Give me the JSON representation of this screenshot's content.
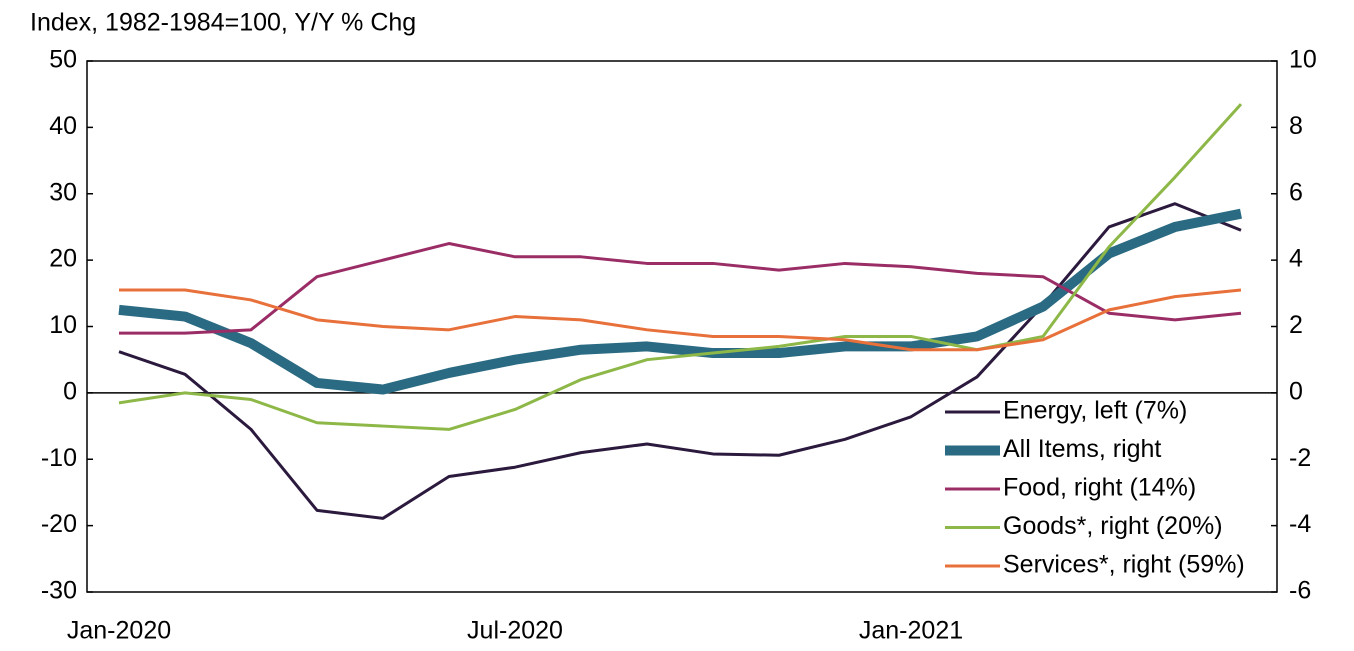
{
  "chart_data": {
    "type": "line",
    "axis_label": "Index, 1982-1984=100, Y/Y % Chg",
    "categories": [
      "Jan-2020",
      null,
      null,
      null,
      null,
      null,
      "Jul-2020",
      null,
      null,
      null,
      null,
      null,
      "Jan-2021",
      null,
      null,
      null,
      null,
      null
    ],
    "ylim": [
      -30,
      50
    ],
    "yticks": [
      -30,
      -20,
      -10,
      0,
      10,
      20,
      30,
      40,
      50
    ],
    "y2lim": [
      -6,
      10
    ],
    "y2ticks": [
      -6,
      -4,
      -2,
      0,
      2,
      4,
      6,
      8,
      10
    ],
    "legend": "lower right",
    "series": [
      {
        "name": "Energy, left (7%)",
        "color": "#2b1a3d",
        "axis": "y",
        "width": 3,
        "values": [
          6.2,
          2.8,
          -5.5,
          -17.7,
          -18.9,
          -12.6,
          -11.2,
          -9,
          -7.7,
          -9.2,
          -9.4,
          -7,
          -3.6,
          2.4,
          13.2,
          25,
          28.5,
          24.5
        ]
      },
      {
        "name": "All Items, right",
        "color": "#2a6a82",
        "axis": "y2",
        "width": 10,
        "values": [
          2.5,
          2.3,
          1.5,
          0.3,
          0.1,
          0.6,
          1.0,
          1.3,
          1.4,
          1.2,
          1.2,
          1.4,
          1.4,
          1.7,
          2.6,
          4.2,
          5.0,
          5.4
        ]
      },
      {
        "name": "Food, right (14%)",
        "color": "#9b2d66",
        "axis": "y2",
        "width": 3,
        "values": [
          1.8,
          1.8,
          1.9,
          3.5,
          4.0,
          4.5,
          4.1,
          4.1,
          3.9,
          3.9,
          3.7,
          3.9,
          3.8,
          3.6,
          3.5,
          2.4,
          2.2,
          2.4
        ]
      },
      {
        "name": "Goods*, right (20%)",
        "color": "#8db848",
        "axis": "y2",
        "width": 3,
        "values": [
          -0.3,
          0,
          -0.2,
          -0.9,
          -1.0,
          -1.1,
          -0.5,
          0.4,
          1.0,
          1.2,
          1.4,
          1.7,
          1.7,
          1.3,
          1.7,
          4.4,
          6.5,
          8.7
        ]
      },
      {
        "name": "Services*, right (59%)",
        "color": "#e8703a",
        "axis": "y2",
        "width": 3,
        "values": [
          3.1,
          3.1,
          2.8,
          2.2,
          2.0,
          1.9,
          2.3,
          2.2,
          1.9,
          1.7,
          1.7,
          1.6,
          1.3,
          1.3,
          1.6,
          2.5,
          2.9,
          3.1
        ]
      }
    ]
  }
}
